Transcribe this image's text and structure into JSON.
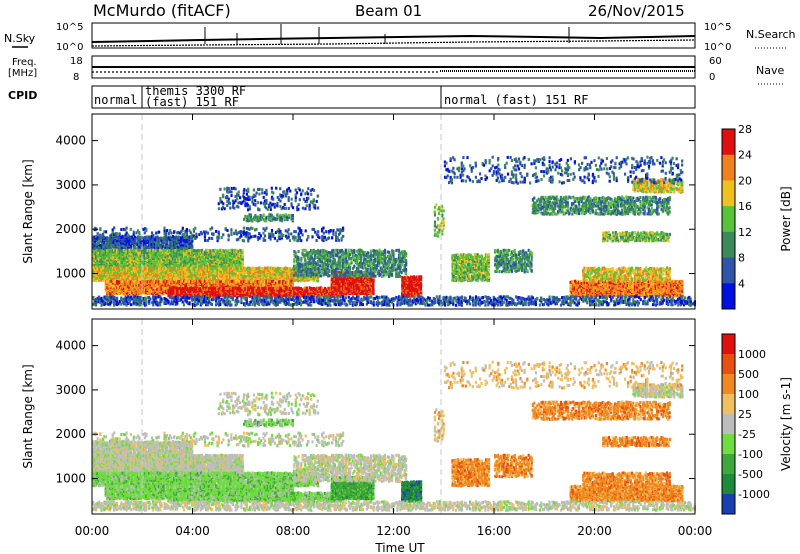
{
  "header": {
    "station": "McMurdo (fitACF)",
    "beam": "Beam 01",
    "date": "26/Nov/2015"
  },
  "strips": {
    "nsky_label": "N.Sky",
    "nsky_ticks": [
      "10^5",
      "10^0"
    ],
    "nsearch_label": "N.Search",
    "nsearch_ticks": [
      "10^5",
      "10^0"
    ],
    "freq_label_1": "Freq.",
    "freq_label_2": "[MHz]",
    "freq_ticks": [
      "18",
      "8"
    ],
    "nave_label": "Nave",
    "nave_ticks": [
      "60",
      "0"
    ],
    "cpid_label": "CPID",
    "cpid_segments": [
      {
        "line1": "normal",
        "line2": ""
      },
      {
        "line1": "themis 3300 RF",
        "line2": "(fast) 151 RF"
      },
      {
        "line1": "normal (fast) 151 RF",
        "line2": ""
      }
    ]
  },
  "chart_data": [
    {
      "type": "heatmap",
      "ylabel": "Slant Range [km]",
      "xlabel": "Time UT",
      "x_ticks": [
        "00:00",
        "04:00",
        "08:00",
        "12:00",
        "16:00",
        "20:00",
        "00:00"
      ],
      "y_ticks": [
        "1000",
        "2000",
        "3000",
        "4000"
      ],
      "ylim": [
        200,
        4600
      ],
      "colorbar": {
        "label": "Power [dB]",
        "ticks": [
          "4",
          "8",
          "12",
          "16",
          "20",
          "24",
          "28"
        ],
        "colors": [
          "#0010e0",
          "#2f55a8",
          "#3c8a5a",
          "#58c23a",
          "#f0c020",
          "#f08020",
          "#e01010"
        ]
      }
    },
    {
      "type": "heatmap",
      "ylabel": "Slant Range [km]",
      "xlabel": "Time UT",
      "x_ticks": [
        "00:00",
        "04:00",
        "08:00",
        "12:00",
        "16:00",
        "20:00",
        "00:00"
      ],
      "y_ticks": [
        "1000",
        "2000",
        "3000",
        "4000"
      ],
      "ylim": [
        200,
        4600
      ],
      "colorbar": {
        "label": "Velocity [m s-1]",
        "ticks": [
          "1000",
          "500",
          "100",
          "25",
          "-25",
          "-100",
          "-500",
          "-1000"
        ],
        "colors": [
          "#1a3fb0",
          "#1f8a3a",
          "#3fa83a",
          "#6fdd3f",
          "#bdbdbd",
          "#f0c060",
          "#f08a20",
          "#e85010",
          "#e01010"
        ]
      }
    }
  ]
}
